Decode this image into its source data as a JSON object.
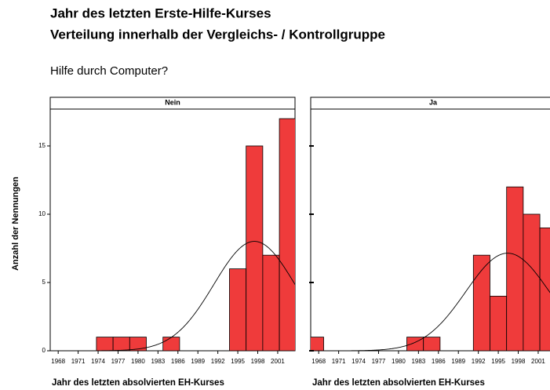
{
  "header": {
    "title": [
      "Jahr des letzten Erste-Hilfe-Kurses",
      "Verteilung innerhalb der Vergleichs- / Kontrollgruppe"
    ],
    "subtitle": "Hilfe durch Computer?"
  },
  "chart_data": [
    {
      "type": "histogram",
      "title": "Nein",
      "xlabel": "Jahr des letzten absolvierten EH-Kurses",
      "ylabel": "Anzahl der Nennungen",
      "bins": [
        1973.75,
        1976.25,
        1978.75,
        1981.25,
        1983.75,
        1986.25,
        1988.75,
        1991.25,
        1993.75,
        1996.25,
        1998.75,
        2001.25,
        2003.75
      ],
      "counts": [
        1,
        1,
        1,
        0,
        1,
        0,
        0,
        0,
        6,
        15,
        7,
        17
      ],
      "color": "#ef3b3b",
      "normal_curve": {
        "mean": 1997.5,
        "sd": 6.1
      },
      "xlim": [
        1966.8,
        2003.6
      ],
      "xticks": [
        1968,
        1971,
        1974,
        1977,
        1980,
        1983,
        1986,
        1989,
        1992,
        1995,
        1998,
        2001
      ],
      "ylim": [
        0,
        17.7
      ],
      "yticks": [
        0,
        5,
        10,
        15
      ]
    },
    {
      "type": "histogram",
      "title": "Ja",
      "xlabel": "Jahr des letzten absolvierten EH-Kurses",
      "bins": [
        1966.25,
        1968.75,
        1971.25,
        1973.75,
        1976.25,
        1978.75,
        1981.25,
        1983.75,
        1986.25,
        1988.75,
        1991.25,
        1993.75,
        1996.25,
        1998.75,
        2001.25,
        2003.75
      ],
      "counts": [
        1,
        0,
        0,
        0,
        0,
        0,
        1,
        1,
        0,
        0,
        7,
        4,
        12,
        10,
        9
      ],
      "color": "#ef3b3b",
      "normal_curve": {
        "mean": 1996.4,
        "sd": 6.28
      },
      "xlim": [
        1966.8,
        2003.6
      ],
      "xticks": [
        1968,
        1971,
        1974,
        1977,
        1980,
        1983,
        1986,
        1989,
        1992,
        1995,
        1998,
        2001
      ],
      "ylim": [
        0,
        17.7
      ],
      "yticks": [
        0,
        5,
        10,
        15
      ]
    }
  ]
}
